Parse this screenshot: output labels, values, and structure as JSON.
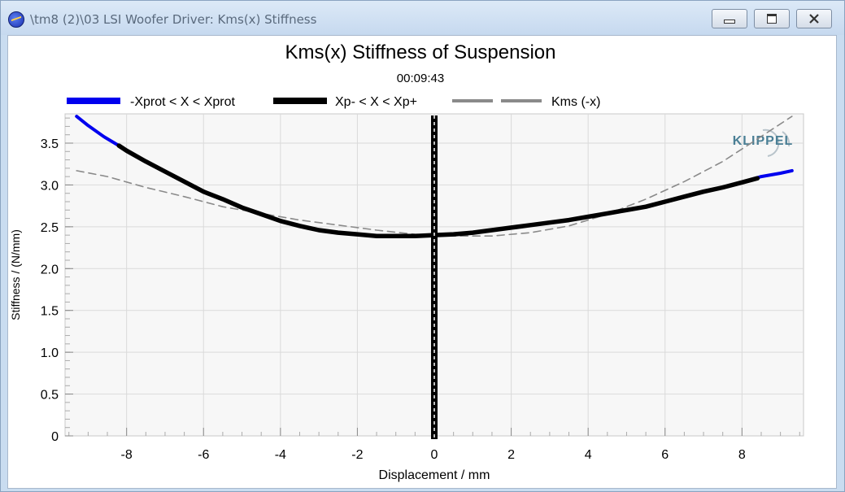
{
  "window": {
    "title": "\\tm8 (2)\\03 LSI Woofer Driver: Kms(x) Stiffness",
    "icon": "app-icon",
    "buttons": [
      "minimize-icon",
      "maximize-icon",
      "close-icon"
    ]
  },
  "logo": {
    "text": "KLIPPEL",
    "color": "#4a7f95"
  },
  "colors": {
    "blue": "#0000ee",
    "black": "#000000",
    "gray": "#8a8a8a",
    "grid": "#d8d8d8",
    "plot_bg": "#f7f7f7"
  },
  "chart_data": {
    "type": "line",
    "title": "Kms(x) Stiffness of Suspension",
    "subtitle": "00:09:43",
    "xlabel": "Displacement / mm",
    "ylabel": "Stiffness / (N/mm)",
    "xlim": [
      -9.6,
      9.6
    ],
    "ylim": [
      0,
      3.85
    ],
    "x_ticks": [
      -8,
      -6,
      -4,
      -2,
      0,
      2,
      4,
      6,
      8
    ],
    "x_tick_labels": [
      "-8",
      "-6",
      "-4",
      "-2",
      "0",
      "2",
      "4",
      "6",
      "8"
    ],
    "y_ticks": [
      0,
      0.5,
      1.0,
      1.5,
      2.0,
      2.5,
      3.0,
      3.5
    ],
    "y_tick_labels": [
      "0",
      "0.5",
      "1.0",
      "1.5",
      "2.0",
      "2.5",
      "3.0",
      "3.5"
    ],
    "grid": true,
    "legend_position": "top",
    "series": [
      {
        "name": "-Xprot < X < Xprot",
        "style": "solid-thin",
        "color": "#0000ee",
        "x": [
          -9.3,
          -9.0,
          -8.6,
          -8.2,
          -8.0,
          -7.5,
          -7.0,
          -6.5,
          -6.0,
          -5.5,
          -5.0,
          -4.5,
          -4.0,
          -3.5,
          -3.0,
          -2.5,
          -2.0,
          -1.5,
          -1.0,
          -0.5,
          0,
          0.5,
          1.0,
          1.5,
          2.0,
          2.5,
          3.0,
          3.5,
          4.0,
          4.5,
          5.0,
          5.5,
          6.0,
          6.5,
          7.0,
          7.5,
          8.0,
          8.5,
          9.0,
          9.3
        ],
        "y": [
          3.82,
          3.71,
          3.58,
          3.47,
          3.41,
          3.28,
          3.16,
          3.04,
          2.92,
          2.83,
          2.73,
          2.65,
          2.57,
          2.51,
          2.46,
          2.43,
          2.41,
          2.39,
          2.39,
          2.39,
          2.4,
          2.41,
          2.43,
          2.46,
          2.49,
          2.52,
          2.55,
          2.58,
          2.62,
          2.66,
          2.7,
          2.74,
          2.8,
          2.86,
          2.92,
          2.97,
          3.03,
          3.1,
          3.14,
          3.17
        ]
      },
      {
        "name": "Xp- < X < Xp+",
        "style": "solid-thick",
        "color": "#000000",
        "x": [
          -8.2,
          -8.0,
          -7.5,
          -7.0,
          -6.5,
          -6.0,
          -5.5,
          -5.0,
          -4.5,
          -4.0,
          -3.5,
          -3.0,
          -2.5,
          -2.0,
          -1.5,
          -1.0,
          -0.5,
          0,
          0.5,
          1.0,
          1.5,
          2.0,
          2.5,
          3.0,
          3.5,
          4.0,
          4.5,
          5.0,
          5.5,
          6.0,
          6.5,
          7.0,
          7.5,
          8.0,
          8.4
        ],
        "y": [
          3.47,
          3.41,
          3.28,
          3.16,
          3.04,
          2.92,
          2.83,
          2.73,
          2.65,
          2.57,
          2.51,
          2.46,
          2.43,
          2.41,
          2.39,
          2.39,
          2.39,
          2.4,
          2.41,
          2.43,
          2.46,
          2.49,
          2.52,
          2.55,
          2.58,
          2.62,
          2.66,
          2.7,
          2.74,
          2.8,
          2.86,
          2.92,
          2.97,
          3.03,
          3.08
        ]
      },
      {
        "name": "Kms (-x)",
        "style": "dashed",
        "color": "#8a8a8a",
        "x": [
          -9.3,
          -8.5,
          -7.5,
          -6.5,
          -5.5,
          -4.5,
          -3.5,
          -2.5,
          -1.5,
          -0.5,
          0,
          0.5,
          1.5,
          2.5,
          3.5,
          4.5,
          5.5,
          6.5,
          7.5,
          8.5,
          9.3
        ],
        "y": [
          3.17,
          3.1,
          2.97,
          2.86,
          2.74,
          2.66,
          2.58,
          2.52,
          2.46,
          2.41,
          2.4,
          2.39,
          2.39,
          2.43,
          2.51,
          2.65,
          2.83,
          3.04,
          3.28,
          3.58,
          3.82
        ]
      }
    ],
    "marker": {
      "x": 0,
      "style": "thick-vertical-black-with-white-dashes"
    }
  }
}
